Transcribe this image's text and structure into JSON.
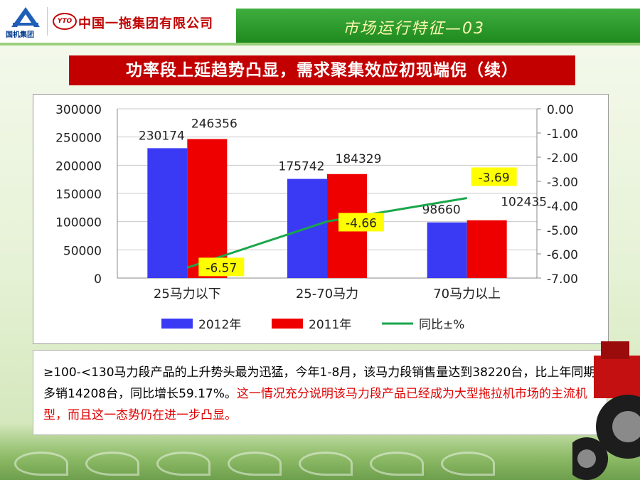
{
  "header": {
    "group_logo_text": "国机集团",
    "yto_logo_text": "YTO",
    "company_name": "中国一拖集团有限公司",
    "section_title": "市场运行特征—03"
  },
  "slide": {
    "title": "功率段上延趋势凸显，需求聚集效应初现端倪（续）"
  },
  "chart_data": {
    "type": "bar",
    "categories": [
      "25马力以下",
      "25-70马力",
      "70马力以上"
    ],
    "series": [
      {
        "name": "2012年",
        "values": [
          230174,
          175742,
          98660
        ],
        "color": "#3a3af5"
      },
      {
        "name": "2011年",
        "values": [
          246356,
          184329,
          102435
        ],
        "color": "#ee0000"
      }
    ],
    "line_series": {
      "name": "同比±%",
      "values": [
        -6.57,
        -4.66,
        -3.69
      ],
      "color": "#1aa64a",
      "axis": "right"
    },
    "left_axis": {
      "ylim": [
        0,
        300000
      ],
      "ticks": [
        "300000",
        "250000",
        "200000",
        "150000",
        "100000",
        "50000",
        "0"
      ]
    },
    "right_axis": {
      "ylim": [
        -7.0,
        0.0
      ],
      "ticks": [
        "0.00",
        "-1.00",
        "-2.00",
        "-3.00",
        "-4.00",
        "-5.00",
        "-6.00",
        "-7.00"
      ]
    },
    "bar_labels": [
      [
        "230174",
        "246356"
      ],
      [
        "175742",
        "184329"
      ],
      [
        "98660",
        "102435"
      ]
    ],
    "line_labels": [
      "-6.57",
      "-4.66",
      "-3.69"
    ],
    "legend_placement": "bottom",
    "grid": true
  },
  "body_text": {
    "normal": "≥100-<130马力段产品的上升势头最为迅猛，今年1-8月，该马力段销售量达到38220台，比上年同期多销14208台，同比增长59.17%。",
    "highlight": "这一情况充分说明该马力段产品已经成为大型拖拉机市场的主流机型，而且这一态势仍在进一步凸显。"
  }
}
